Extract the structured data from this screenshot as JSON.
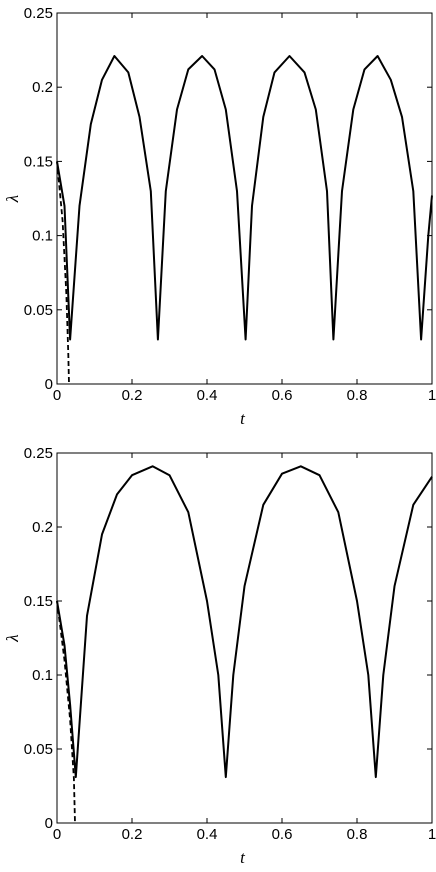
{
  "chart_data": [
    {
      "type": "line",
      "title": "",
      "xlabel": "t",
      "ylabel": "λ",
      "xlim": [
        0,
        1
      ],
      "ylim": [
        0,
        0.25
      ],
      "xticks": [
        "0",
        "0.2",
        "0.4",
        "0.6",
        "0.8",
        "1"
      ],
      "yticks": [
        "0",
        "0.05",
        "0.1",
        "0.15",
        "0.2",
        "0.25"
      ],
      "grid": false,
      "series": [
        {
          "style": "solid",
          "color": "#000000",
          "x": [
            0,
            0.02,
            0.035,
            0.06,
            0.09,
            0.12,
            0.153,
            0.19,
            0.22,
            0.25,
            0.269,
            0.29,
            0.32,
            0.35,
            0.387,
            0.42,
            0.45,
            0.48,
            0.503,
            0.52,
            0.55,
            0.58,
            0.62,
            0.66,
            0.69,
            0.72,
            0.737,
            0.76,
            0.79,
            0.82,
            0.855,
            0.89,
            0.92,
            0.95,
            0.971,
            0.99,
            1.0
          ],
          "y": [
            0.15,
            0.12,
            0.03,
            0.12,
            0.175,
            0.205,
            0.221,
            0.21,
            0.18,
            0.13,
            0.03,
            0.13,
            0.185,
            0.212,
            0.221,
            0.212,
            0.185,
            0.13,
            0.03,
            0.12,
            0.18,
            0.21,
            0.221,
            0.21,
            0.185,
            0.13,
            0.03,
            0.13,
            0.185,
            0.212,
            0.221,
            0.205,
            0.18,
            0.13,
            0.03,
            0.1,
            0.127
          ]
        },
        {
          "style": "dashed",
          "color": "#000000",
          "x": [
            0,
            0.015,
            0.025,
            0.03,
            0.032
          ],
          "y": [
            0.15,
            0.11,
            0.06,
            0.02,
            0
          ]
        }
      ]
    },
    {
      "type": "line",
      "title": "",
      "xlabel": "t",
      "ylabel": "λ",
      "xlim": [
        0,
        1
      ],
      "ylim": [
        0,
        0.25
      ],
      "xticks": [
        "0",
        "0.2",
        "0.4",
        "0.6",
        "0.8",
        "1"
      ],
      "yticks": [
        "0",
        "0.05",
        "0.1",
        "0.15",
        "0.2",
        "0.25"
      ],
      "grid": false,
      "series": [
        {
          "style": "solid",
          "color": "#000000",
          "x": [
            0,
            0.02,
            0.035,
            0.05,
            0.08,
            0.12,
            0.16,
            0.2,
            0.255,
            0.3,
            0.35,
            0.4,
            0.43,
            0.45,
            0.47,
            0.5,
            0.55,
            0.6,
            0.65,
            0.7,
            0.75,
            0.8,
            0.83,
            0.85,
            0.87,
            0.9,
            0.95,
            1.0
          ],
          "y": [
            0.15,
            0.12,
            0.08,
            0.031,
            0.14,
            0.195,
            0.222,
            0.235,
            0.241,
            0.235,
            0.21,
            0.15,
            0.1,
            0.031,
            0.1,
            0.16,
            0.215,
            0.236,
            0.241,
            0.235,
            0.21,
            0.15,
            0.1,
            0.031,
            0.1,
            0.16,
            0.215,
            0.234
          ]
        },
        {
          "style": "dashed",
          "color": "#000000",
          "x": [
            0,
            0.02,
            0.035,
            0.045,
            0.048
          ],
          "y": [
            0.15,
            0.11,
            0.07,
            0.03,
            0
          ]
        }
      ]
    }
  ]
}
